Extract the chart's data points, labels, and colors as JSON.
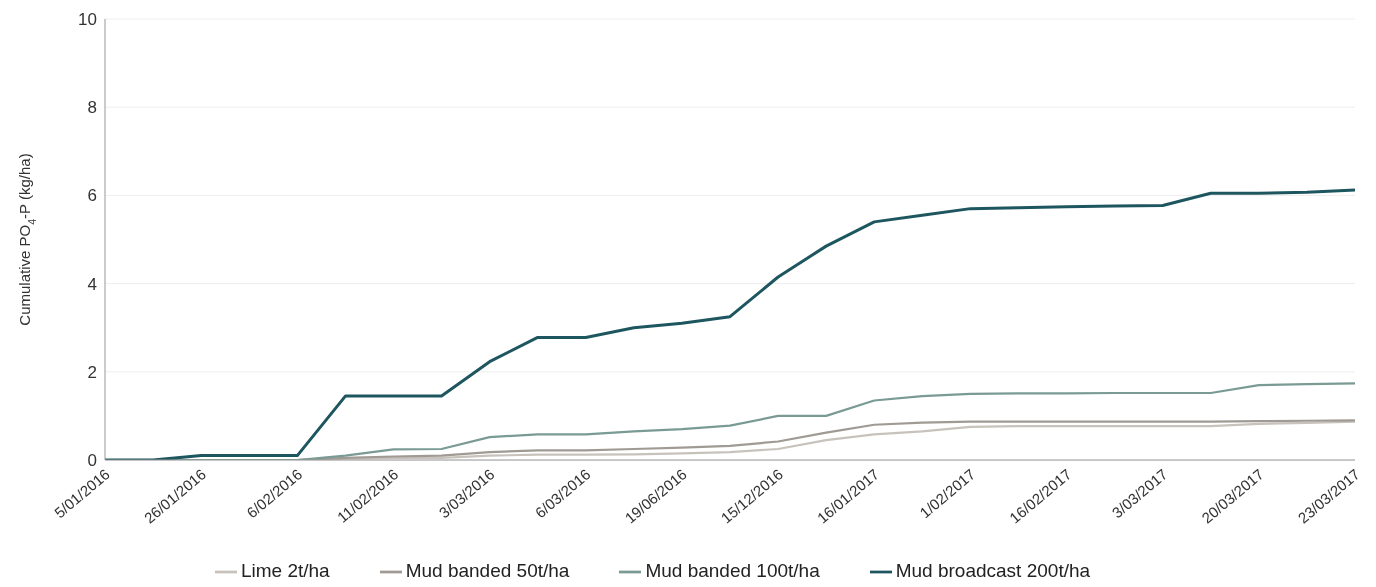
{
  "chart_data": {
    "type": "line",
    "ylabel": "Cumulative PO$_{4}$-P (kg/ha)",
    "categories": [
      "5/01/2016",
      null,
      "26/01/2016",
      null,
      "6/02/2016",
      null,
      "11/02/2016",
      null,
      "3/03/2016",
      null,
      "6/03/2016",
      null,
      "19/06/2016",
      null,
      "15/12/2016",
      null,
      "16/01/2017",
      null,
      "1/02/2017",
      null,
      "16/02/2017",
      null,
      "3/03/2017",
      null,
      "20/03/2017",
      null,
      "23/03/2017"
    ],
    "series": [
      {
        "name": "Lime 2t/ha",
        "color": "#c8c2bc",
        "values": [
          0,
          0,
          0,
          0,
          0,
          0.03,
          0.05,
          0.05,
          0.1,
          0.12,
          0.12,
          0.13,
          0.15,
          0.18,
          0.25,
          0.45,
          0.58,
          0.65,
          0.75,
          0.77,
          0.77,
          0.77,
          0.77,
          0.77,
          0.82,
          0.84,
          0.87
        ]
      },
      {
        "name": "Mud banded 50t/ha",
        "color": "#a09a94",
        "values": [
          0,
          0,
          0,
          0,
          0,
          0.05,
          0.08,
          0.1,
          0.18,
          0.22,
          0.22,
          0.25,
          0.28,
          0.32,
          0.42,
          0.62,
          0.8,
          0.85,
          0.87,
          0.87,
          0.87,
          0.87,
          0.87,
          0.87,
          0.88,
          0.89,
          0.9
        ]
      },
      {
        "name": "Mud banded 100t/ha",
        "color": "#7a9a94",
        "values": [
          0,
          0,
          0,
          0,
          0,
          0.1,
          0.24,
          0.25,
          0.52,
          0.58,
          0.58,
          0.65,
          0.7,
          0.78,
          1.0,
          1.0,
          1.35,
          1.45,
          1.5,
          1.51,
          1.51,
          1.52,
          1.52,
          1.52,
          1.7,
          1.72,
          1.74
        ]
      },
      {
        "name": "Mud broadcast 200t/ha",
        "color": "#1e5660",
        "values": [
          0,
          0,
          0.1,
          0.1,
          0.1,
          1.45,
          1.45,
          1.45,
          2.23,
          2.78,
          2.78,
          3.0,
          3.1,
          3.25,
          4.15,
          4.85,
          5.4,
          5.55,
          5.7,
          5.72,
          5.74,
          5.76,
          5.77,
          6.05,
          6.05,
          6.07,
          6.12
        ]
      }
    ],
    "ylim": [
      0,
      10
    ],
    "yticks": [
      0,
      2,
      4,
      6,
      8,
      10
    ],
    "grid": "y",
    "legend": "bottom",
    "marker": "none",
    "line_style": "solid"
  }
}
